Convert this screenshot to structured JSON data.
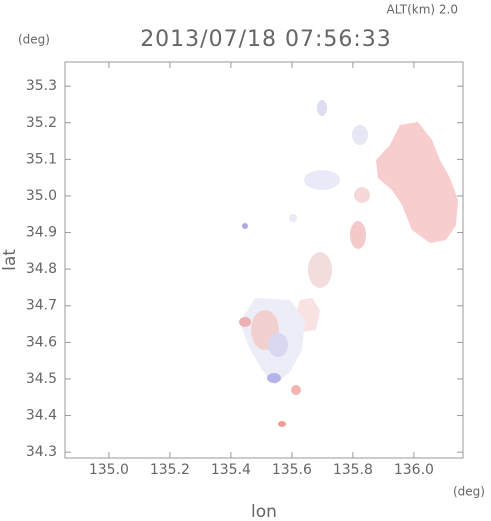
{
  "chart_data": {
    "type": "map",
    "title": "2013/07/18 07:56:33",
    "subtitle": "ALT(km) 2.0",
    "x_label": "lon",
    "y_label": "lat",
    "x_unit": "(deg)",
    "y_unit": "(deg)",
    "xlim": [
      134.856,
      136.161
    ],
    "ylim": [
      34.284,
      35.366
    ],
    "xticks": [
      {
        "value": 135.0,
        "label": "135.0"
      },
      {
        "value": 135.2,
        "label": "135.2"
      },
      {
        "value": 135.4,
        "label": "135.4"
      },
      {
        "value": 135.6,
        "label": "135.6"
      },
      {
        "value": 135.8,
        "label": "135.8"
      },
      {
        "value": 136.0,
        "label": "136.0"
      }
    ],
    "yticks": [
      {
        "value": 34.3,
        "label": "34.3"
      },
      {
        "value": 34.4,
        "label": "34.4"
      },
      {
        "value": 34.5,
        "label": "34.5"
      },
      {
        "value": 34.6,
        "label": "34.6"
      },
      {
        "value": 34.7,
        "label": "34.7"
      },
      {
        "value": 34.8,
        "label": "34.8"
      },
      {
        "value": 34.9,
        "label": "34.9"
      },
      {
        "value": 35.0,
        "label": "35.0"
      },
      {
        "value": 35.1,
        "label": "35.1"
      },
      {
        "value": 35.2,
        "label": "35.2"
      },
      {
        "value": 35.3,
        "label": "35.3"
      }
    ]
  }
}
